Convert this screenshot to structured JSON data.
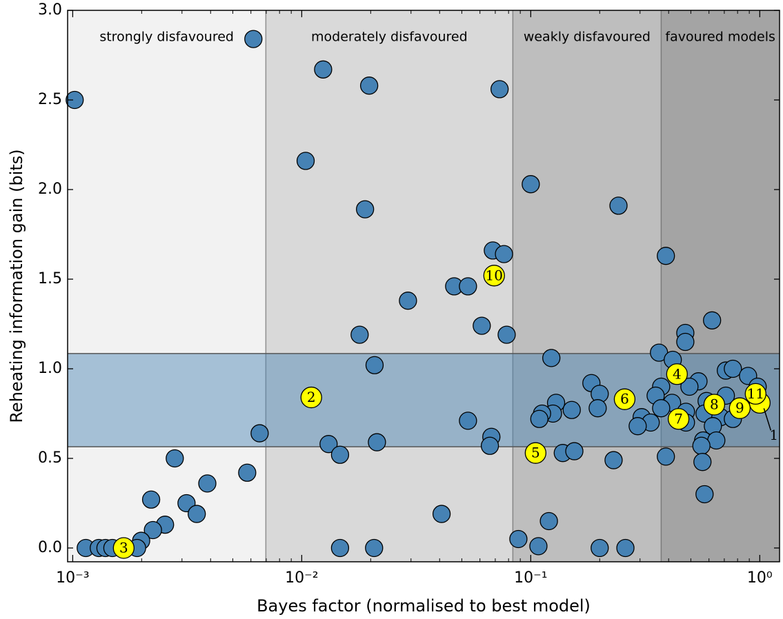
{
  "chart_data": {
    "type": "scatter",
    "xscale": "log",
    "xlabel": "Bayes factor (normalised to best model)",
    "ylabel": "Reheating information gain (bits)",
    "xlim": [
      0.00095,
      1.22
    ],
    "ylim": [
      -0.077,
      3.0
    ],
    "xticks": [
      {
        "value": 0.001,
        "label": "10⁻³"
      },
      {
        "value": 0.01,
        "label": "10⁻²"
      },
      {
        "value": 0.1,
        "label": "10⁻¹"
      },
      {
        "value": 1,
        "label": "10⁰"
      }
    ],
    "yticks": [
      {
        "value": 0,
        "label": "0.0"
      },
      0.5,
      {
        "value": 1,
        "label": "1.0"
      },
      1.5,
      {
        "value": 2,
        "label": "2.0"
      },
      2.5,
      {
        "value": 3,
        "label": "3.0"
      }
    ],
    "regions": [
      {
        "label": "strongly disfavoured",
        "x": [
          0.00095,
          0.00697
        ],
        "color": "#f2f2f2"
      },
      {
        "label": "moderately disfavoured",
        "x": [
          0.00697,
          0.0835
        ],
        "color": "#d9d9d9"
      },
      {
        "label": "weakly disfavoured",
        "x": [
          0.0835,
          0.371
        ],
        "color": "#bebebe"
      },
      {
        "label": "favoured models",
        "x": [
          0.371,
          1.22
        ],
        "color": "#a4a4a4"
      }
    ],
    "band": {
      "y": [
        0.565,
        1.085
      ],
      "color": "#4682b4"
    },
    "series": [
      {
        "color": "#4682b4",
        "x": [
          0.00102,
          0.00615,
          0.0124,
          0.0197,
          0.0731,
          0.0104,
          0.1,
          0.0189,
          0.2416,
          0.0683,
          0.0764,
          0.389,
          0.0463,
          0.0532,
          0.0291,
          0.0611,
          0.0785,
          0.0179,
          0.619,
          0.473,
          0.473,
          0.363,
          0.417,
          0.0208,
          0.123,
          0.711,
          0.763,
          0.889,
          0.54,
          0.979,
          0.493,
          0.371,
          0.184,
          0.2,
          0.351,
          0.129,
          0.414,
          0.586,
          0.711,
          0.196,
          0.371,
          0.476,
          0.151,
          0.125,
          0.112,
          0.109,
          0.305,
          0.334,
          0.293,
          0.574,
          0.673,
          0.763,
          0.476,
          0.624,
          0.566,
          0.646,
          0.556,
          0.562,
          0.389,
          0.574,
          0.0532,
          0.0673,
          0.0663,
          0.0213,
          0.0131,
          0.0147,
          0.00655,
          0.00578,
          0.138,
          0.155,
          0.23,
          0.00279,
          0.00387,
          0.0022,
          0.00314,
          0.00348,
          0.0408,
          0.00253,
          0.00224,
          0.00199,
          0.00191,
          0.00114,
          0.0013,
          0.00139,
          0.00149,
          0.0147,
          0.0207,
          0.0883,
          0.108,
          0.12,
          0.2,
          0.259
        ],
        "y": [
          2.5,
          2.84,
          2.67,
          2.58,
          2.56,
          2.16,
          2.03,
          1.89,
          1.91,
          1.66,
          1.64,
          1.63,
          1.46,
          1.46,
          1.38,
          1.24,
          1.19,
          1.19,
          1.27,
          1.2,
          1.15,
          1.09,
          1.05,
          1.02,
          1.06,
          0.99,
          1.0,
          0.96,
          0.93,
          0.9,
          0.9,
          0.9,
          0.92,
          0.86,
          0.85,
          0.81,
          0.81,
          0.82,
          0.85,
          0.78,
          0.78,
          0.76,
          0.77,
          0.75,
          0.75,
          0.72,
          0.73,
          0.7,
          0.68,
          0.75,
          0.73,
          0.72,
          0.7,
          0.68,
          0.6,
          0.6,
          0.57,
          0.48,
          0.51,
          0.3,
          0.71,
          0.62,
          0.57,
          0.59,
          0.58,
          0.52,
          0.64,
          0.42,
          0.53,
          0.54,
          0.49,
          0.5,
          0.36,
          0.27,
          0.25,
          0.19,
          0.19,
          0.13,
          0.1,
          0.04,
          0,
          0,
          0,
          0,
          0,
          0,
          0,
          0.05,
          0.01,
          0.15,
          0,
          0
        ]
      },
      {
        "color": "#ffff00",
        "labels": [
          "1",
          "2",
          "3",
          "4",
          "5",
          "6",
          "7",
          "8",
          "9",
          "10",
          "11"
        ],
        "x": [
          1.0,
          0.01101,
          0.00167,
          0.435,
          0.105,
          0.257,
          0.442,
          0.633,
          0.818,
          0.0692,
          0.959
        ],
        "y": [
          0.81,
          0.84,
          0,
          0.97,
          0.53,
          0.83,
          0.72,
          0.8,
          0.78,
          1.52,
          0.86
        ]
      }
    ]
  }
}
